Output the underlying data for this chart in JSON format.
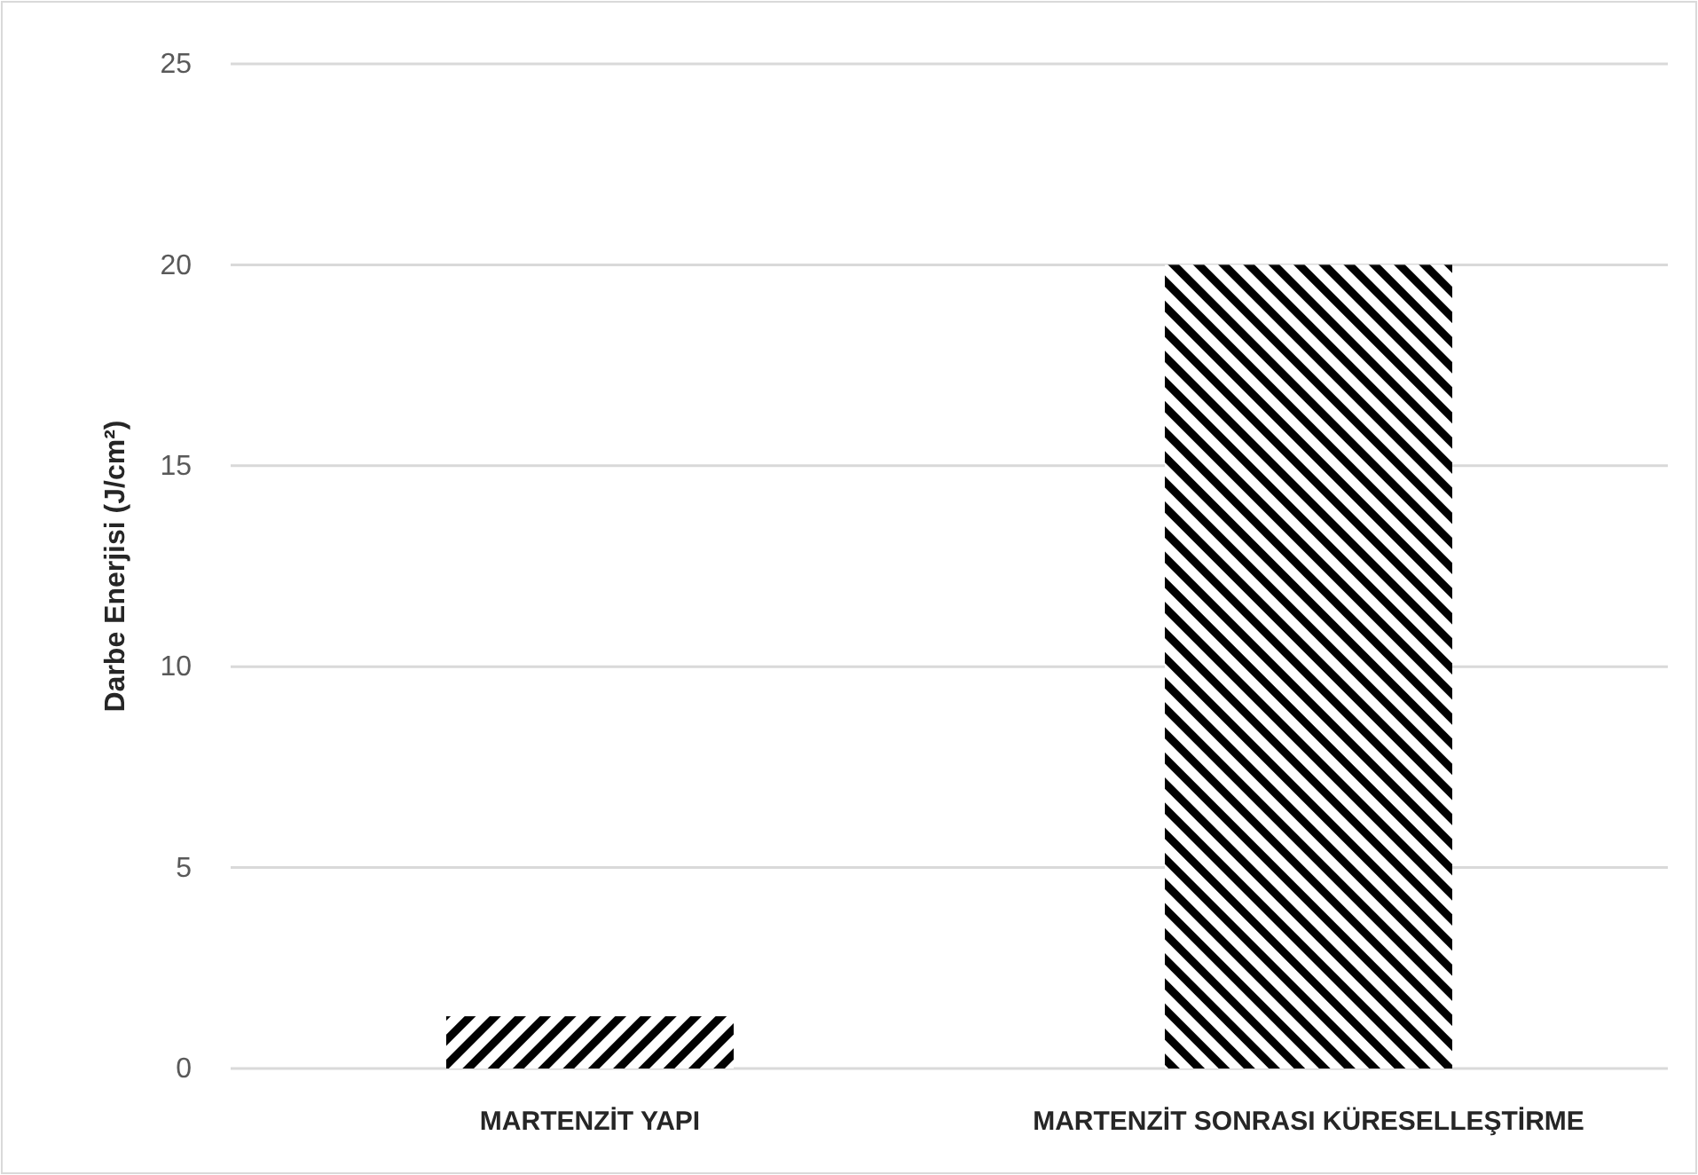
{
  "chart_data": {
    "type": "bar",
    "ylabel": "Darbe Enerjisi (J/cm²)",
    "categories": [
      "MARTENZİT YAPI",
      "MARTENZİT SONRASI KÜRESELLEŞTİRME"
    ],
    "values": [
      1.3,
      20
    ],
    "color": "#000000",
    "ylim": [
      0,
      25
    ],
    "yticks": [
      0,
      5,
      10,
      15,
      20,
      25
    ],
    "grid": "y"
  }
}
